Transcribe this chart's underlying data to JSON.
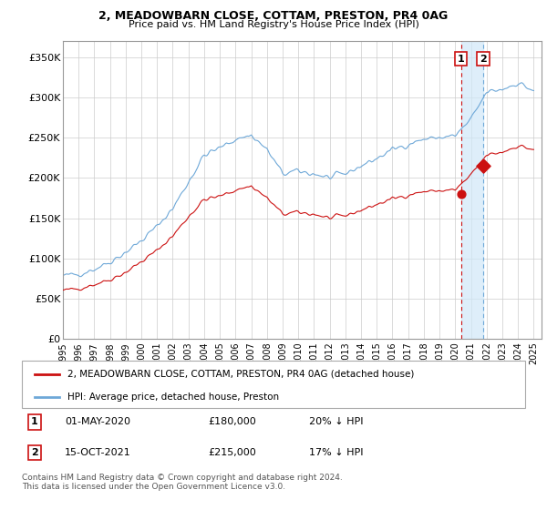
{
  "title": "2, MEADOWBARN CLOSE, COTTAM, PRESTON, PR4 0AG",
  "subtitle": "Price paid vs. HM Land Registry's House Price Index (HPI)",
  "ylabel_ticks": [
    "£0",
    "£50K",
    "£100K",
    "£150K",
    "£200K",
    "£250K",
    "£300K",
    "£350K"
  ],
  "ytick_values": [
    0,
    50000,
    100000,
    150000,
    200000,
    250000,
    300000,
    350000
  ],
  "ylim": [
    0,
    370000
  ],
  "xlim_start": 1995.0,
  "xlim_end": 2025.5,
  "legend_line1": "2, MEADOWBARN CLOSE, COTTAM, PRESTON, PR4 0AG (detached house)",
  "legend_line2": "HPI: Average price, detached house, Preston",
  "annotation1_label": "1",
  "annotation1_date": "01-MAY-2020",
  "annotation1_price": "£180,000",
  "annotation1_hpi": "20% ↓ HPI",
  "annotation2_label": "2",
  "annotation2_date": "15-OCT-2021",
  "annotation2_price": "£215,000",
  "annotation2_hpi": "17% ↓ HPI",
  "footer": "Contains HM Land Registry data © Crown copyright and database right 2024.\nThis data is licensed under the Open Government Licence v3.0.",
  "hpi_color": "#6ea8d8",
  "price_color": "#cc1111",
  "annotation_color": "#cc1111",
  "purchase1_x": 2020.37,
  "purchase1_y": 180000,
  "purchase2_x": 2021.79,
  "purchase2_y": 215000,
  "shade_color": "#d0e8f8"
}
